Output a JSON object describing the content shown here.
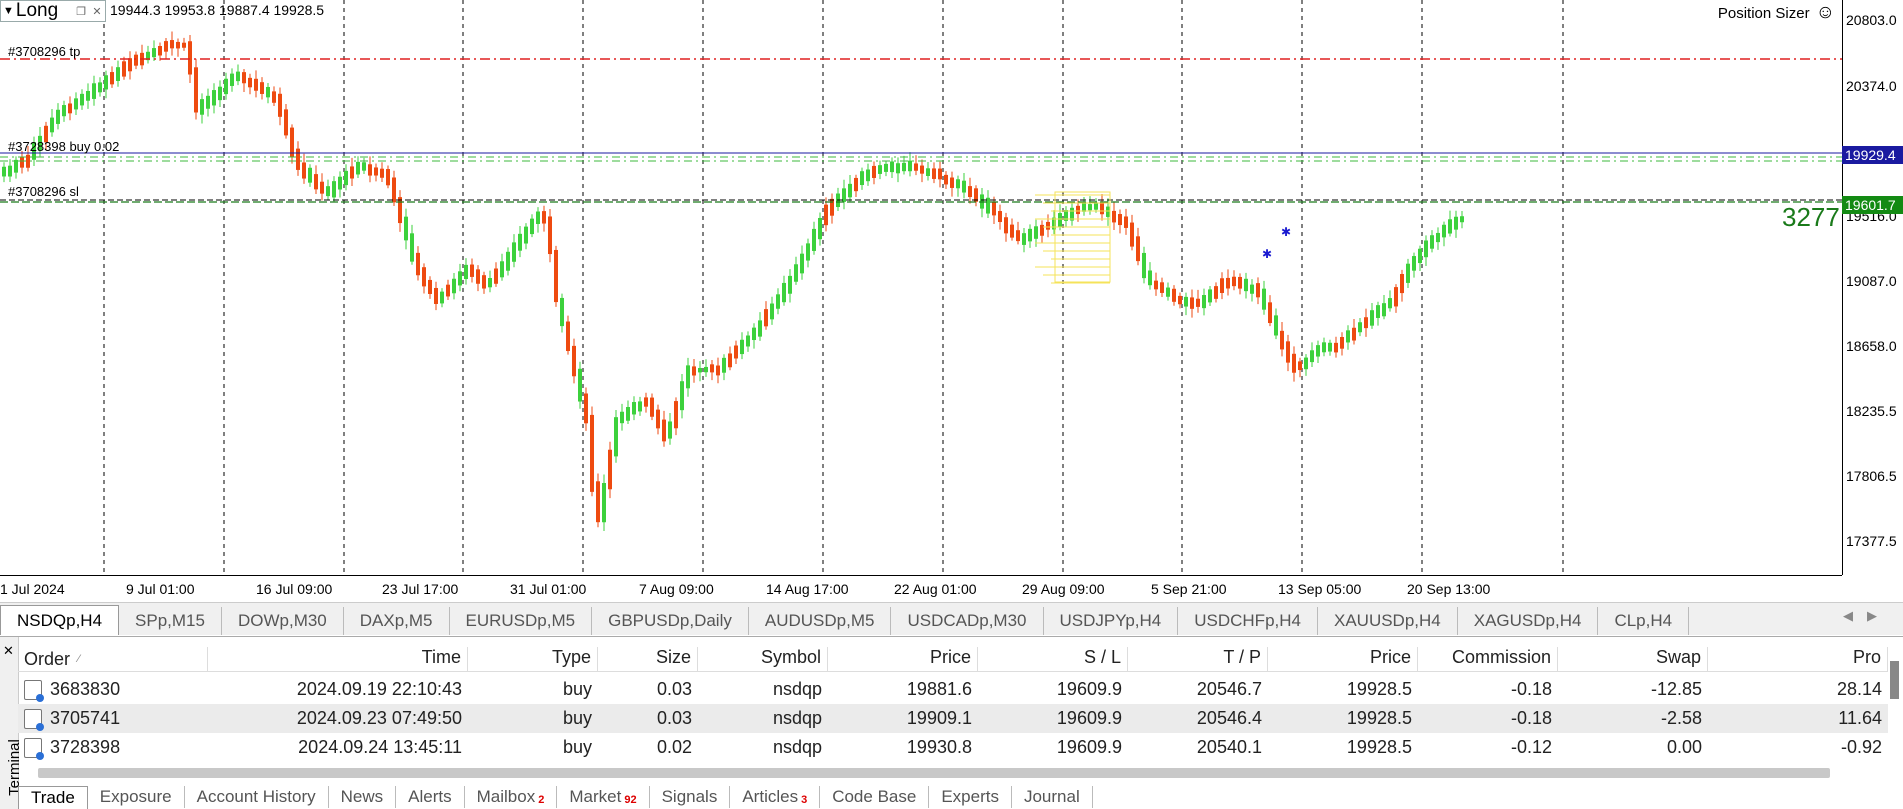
{
  "chart": {
    "ohlc_text": "19944.3 19953.8 19887.4 19928.5",
    "panel_title": "Long",
    "position_sizer_label": "Position Sizer",
    "big_number": "3277",
    "labels": {
      "tp": "#3708296 tp",
      "buy": "#3728398 buy 0.02",
      "sl": "#3708296 sl"
    },
    "price_ticks": [
      "20803.0",
      "20374.0",
      "19516.0",
      "19087.0",
      "18658.0",
      "18235.5",
      "17806.5",
      "17377.5"
    ],
    "current_price": "19929.4",
    "sl_price": "19601.7",
    "time_ticks": [
      "1 Jul 2024",
      "9 Jul 01:00",
      "16 Jul 09:00",
      "23 Jul 17:00",
      "31 Jul 01:00",
      "7 Aug 09:00",
      "14 Aug 17:00",
      "22 Aug 01:00",
      "29 Aug 09:00",
      "5 Sep 21:00",
      "13 Sep 05:00",
      "20 Sep 13:00"
    ],
    "colors": {
      "tp_line": "#e02020",
      "sl_line": "#1a7a1a",
      "entry_line": "#1a1aa0",
      "bull": "#3cd13c",
      "bear": "#ee4a10",
      "current_box": "#1a1aa0",
      "sl_box": "#138a13"
    }
  },
  "chart_tabs": [
    "NSDQp,H4",
    "SPp,M15",
    "DOWp,M30",
    "DAXp,M5",
    "EURUSDp,M5",
    "GBPUSDp,Daily",
    "AUDUSDp,M5",
    "USDCADp,M30",
    "USDJPYp,H4",
    "USDCHFp,H4",
    "XAUUSDp,H4",
    "XAGUSDp,H4",
    "CLp,H4"
  ],
  "terminal": {
    "side_label": "Terminal",
    "columns": {
      "order": "Order",
      "time": "Time",
      "type": "Type",
      "size": "Size",
      "symbol": "Symbol",
      "price": "Price",
      "sl": "S / L",
      "tp": "T / P",
      "price2": "Price",
      "commission": "Commission",
      "swap": "Swap",
      "profit": "Pro"
    },
    "rows": [
      {
        "order": "3683830",
        "time": "2024.09.19 22:10:43",
        "type": "buy",
        "size": "0.03",
        "symbol": "nsdqp",
        "price": "19881.6",
        "sl": "19609.9",
        "tp": "20546.7",
        "price2": "19928.5",
        "commission": "-0.18",
        "swap": "-12.85",
        "profit": "28.14"
      },
      {
        "order": "3705741",
        "time": "2024.09.23 07:49:50",
        "type": "buy",
        "size": "0.03",
        "symbol": "nsdqp",
        "price": "19909.1",
        "sl": "19609.9",
        "tp": "20546.4",
        "price2": "19928.5",
        "commission": "-0.18",
        "swap": "-2.58",
        "profit": "11.64"
      },
      {
        "order": "3728398",
        "time": "2024.09.24 13:45:11",
        "type": "buy",
        "size": "0.02",
        "symbol": "nsdqp",
        "price": "19930.8",
        "sl": "19609.9",
        "tp": "20540.1",
        "price2": "19928.5",
        "commission": "-0.12",
        "swap": "0.00",
        "profit": "-0.92"
      }
    ],
    "tabs": [
      {
        "label": "Trade",
        "badge": ""
      },
      {
        "label": "Exposure",
        "badge": ""
      },
      {
        "label": "Account History",
        "badge": ""
      },
      {
        "label": "News",
        "badge": ""
      },
      {
        "label": "Alerts",
        "badge": ""
      },
      {
        "label": "Mailbox",
        "badge": "2"
      },
      {
        "label": "Market",
        "badge": "92"
      },
      {
        "label": "Signals",
        "badge": ""
      },
      {
        "label": "Articles",
        "badge": "3"
      },
      {
        "label": "Code Base",
        "badge": ""
      },
      {
        "label": "Experts",
        "badge": ""
      },
      {
        "label": "Journal",
        "badge": ""
      }
    ]
  }
}
